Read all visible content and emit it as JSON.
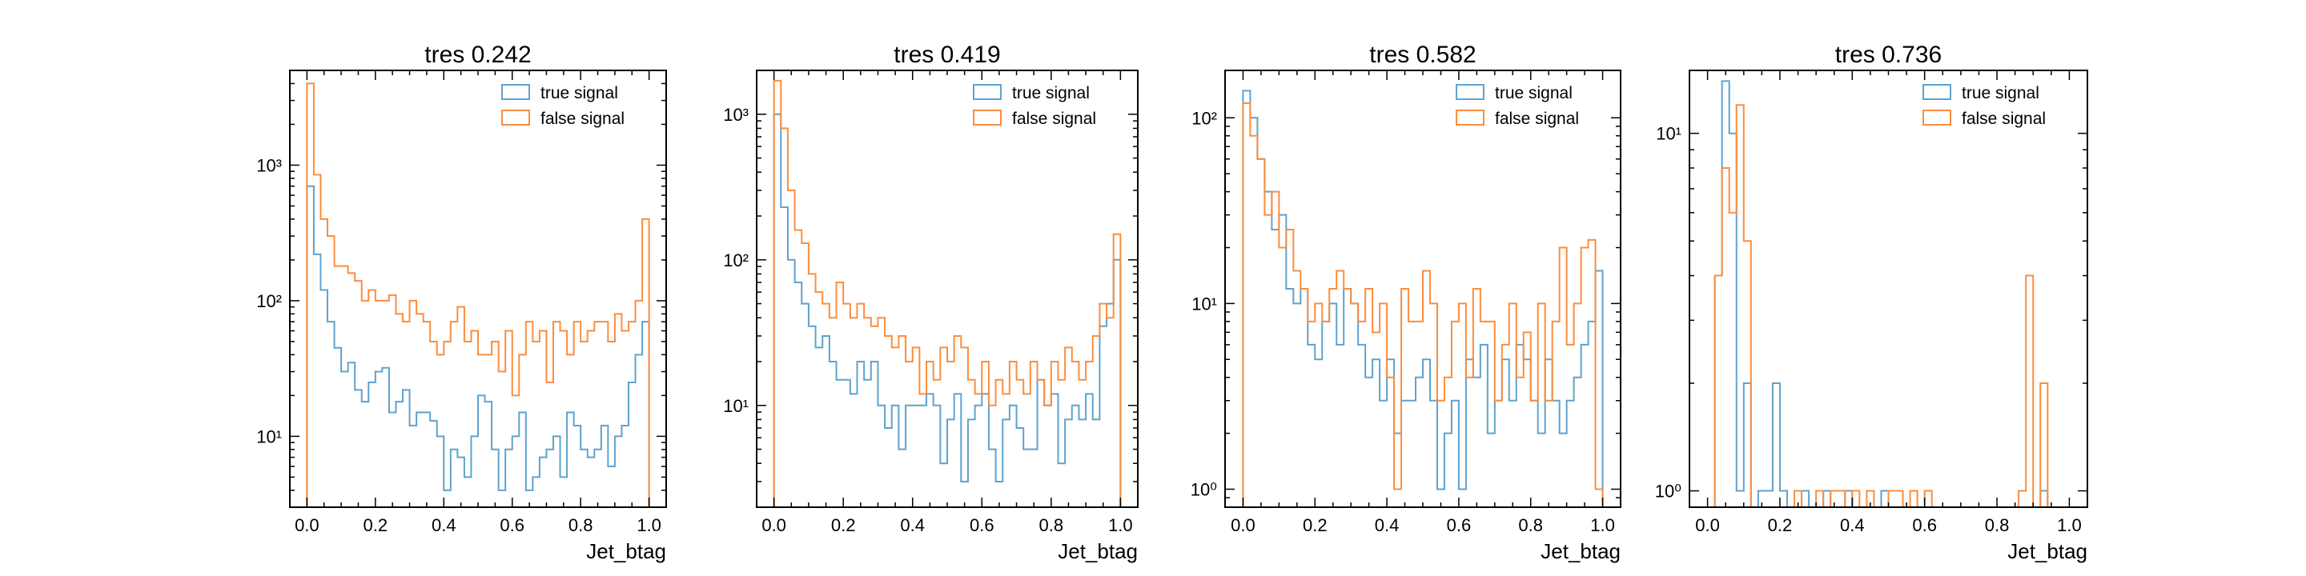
{
  "chart_data": [
    {
      "type": "histogram",
      "title": "tres 0.242",
      "xlabel": "Jet_btag",
      "ylabel": "",
      "yscale": "log",
      "xlim": [
        -0.05,
        1.05
      ],
      "ylim": [
        3,
        5000
      ],
      "bins": 50,
      "xticks": [
        "0.0",
        "0.2",
        "0.4",
        "0.6",
        "0.8",
        "1.0"
      ],
      "yticks": [
        {
          "value": 10,
          "label": "10¹"
        },
        {
          "value": 100,
          "label": "10²"
        },
        {
          "value": 1000,
          "label": "10³"
        }
      ],
      "legend": {
        "placement": "top-right",
        "entries": [
          "true signal",
          "false signal"
        ]
      },
      "series": [
        {
          "name": "true signal",
          "color": "#5fa2ce",
          "style": "step",
          "values": [
            700,
            220,
            120,
            70,
            45,
            30,
            35,
            22,
            18,
            25,
            30,
            32,
            15,
            18,
            22,
            12,
            15,
            15,
            13,
            10,
            4,
            8,
            7,
            5,
            10,
            20,
            18,
            8,
            4,
            8,
            10,
            15,
            4,
            5,
            7,
            8,
            10,
            5,
            15,
            12,
            8,
            7,
            8,
            12,
            6,
            10,
            12,
            25,
            40,
            70
          ]
        },
        {
          "name": "false signal",
          "color": "#fc8d3d",
          "style": "step",
          "values": [
            4000,
            850,
            400,
            300,
            180,
            180,
            160,
            140,
            100,
            120,
            100,
            100,
            110,
            80,
            70,
            100,
            80,
            70,
            50,
            40,
            50,
            70,
            90,
            50,
            60,
            40,
            40,
            50,
            30,
            60,
            20,
            40,
            70,
            50,
            60,
            25,
            70,
            60,
            40,
            70,
            50,
            60,
            70,
            70,
            50,
            80,
            60,
            70,
            100,
            400
          ]
        }
      ]
    },
    {
      "type": "histogram",
      "title": "tres 0.419",
      "xlabel": "Jet_btag",
      "ylabel": "",
      "yscale": "log",
      "xlim": [
        -0.05,
        1.05
      ],
      "ylim": [
        2,
        2000
      ],
      "bins": 50,
      "xticks": [
        "0.0",
        "0.2",
        "0.4",
        "0.6",
        "0.8",
        "1.0"
      ],
      "yticks": [
        {
          "value": 10,
          "label": "10¹"
        },
        {
          "value": 100,
          "label": "10²"
        },
        {
          "value": 1000,
          "label": "10³"
        }
      ],
      "legend": {
        "placement": "top-right",
        "entries": [
          "true signal",
          "false signal"
        ]
      },
      "series": [
        {
          "name": "true signal",
          "color": "#5fa2ce",
          "style": "step",
          "values": [
            1000,
            230,
            100,
            70,
            50,
            35,
            25,
            30,
            20,
            15,
            15,
            12,
            20,
            15,
            20,
            10,
            7,
            10,
            5,
            10,
            10,
            10,
            12,
            10,
            4,
            8,
            12,
            3,
            8,
            10,
            12,
            5,
            3,
            8,
            10,
            7,
            5,
            5,
            15,
            10,
            12,
            4,
            8,
            10,
            8,
            12,
            8,
            35,
            50,
            100
          ]
        },
        {
          "name": "false signal",
          "color": "#fc8d3d",
          "style": "step",
          "values": [
            1700,
            800,
            300,
            160,
            130,
            80,
            60,
            50,
            40,
            70,
            50,
            40,
            50,
            40,
            35,
            40,
            30,
            25,
            30,
            20,
            25,
            12,
            20,
            15,
            25,
            20,
            30,
            25,
            15,
            12,
            20,
            10,
            15,
            12,
            20,
            15,
            12,
            20,
            15,
            10,
            20,
            15,
            25,
            20,
            15,
            20,
            30,
            50,
            40,
            150
          ]
        }
      ]
    },
    {
      "type": "histogram",
      "title": "tres 0.582",
      "xlabel": "Jet_btag",
      "ylabel": "",
      "yscale": "log",
      "xlim": [
        -0.05,
        1.05
      ],
      "ylim": [
        0.8,
        180
      ],
      "bins": 50,
      "xticks": [
        "0.0",
        "0.2",
        "0.4",
        "0.6",
        "0.8",
        "1.0"
      ],
      "yticks": [
        {
          "value": 1,
          "label": "10⁰"
        },
        {
          "value": 10,
          "label": "10¹"
        },
        {
          "value": 100,
          "label": "10²"
        }
      ],
      "legend": {
        "placement": "top-right",
        "entries": [
          "true signal",
          "false signal"
        ]
      },
      "series": [
        {
          "name": "true signal",
          "color": "#5fa2ce",
          "style": "step",
          "values": [
            140,
            100,
            60,
            40,
            25,
            30,
            12,
            10,
            12,
            6,
            5,
            8,
            10,
            6,
            12,
            10,
            6,
            4,
            5,
            3,
            5,
            2,
            3,
            3,
            4,
            5,
            3,
            1,
            2,
            3,
            1,
            5,
            4,
            6,
            2,
            3,
            5,
            3,
            6,
            5,
            3,
            2,
            5,
            3,
            2,
            3,
            4,
            6,
            8,
            15
          ]
        },
        {
          "name": "false signal",
          "color": "#fc8d3d",
          "style": "step",
          "values": [
            120,
            80,
            60,
            30,
            40,
            20,
            25,
            15,
            12,
            8,
            10,
            8,
            12,
            15,
            12,
            10,
            8,
            12,
            7,
            10,
            4,
            1,
            12,
            8,
            8,
            15,
            10,
            3,
            4,
            8,
            10,
            4,
            12,
            8,
            8,
            3,
            6,
            10,
            4,
            7,
            3,
            10,
            3,
            8,
            20,
            6,
            10,
            20,
            22,
            1
          ]
        }
      ]
    },
    {
      "type": "histogram",
      "title": "tres 0.736",
      "xlabel": "Jet_btag",
      "ylabel": "",
      "yscale": "log",
      "xlim": [
        -0.05,
        1.05
      ],
      "ylim": [
        0.9,
        15
      ],
      "bins": 50,
      "xticks": [
        "0.0",
        "0.2",
        "0.4",
        "0.6",
        "0.8",
        "1.0"
      ],
      "yticks": [
        {
          "value": 1,
          "label": "10⁰"
        },
        {
          "value": 10,
          "label": "10¹"
        }
      ],
      "legend": {
        "placement": "top-right",
        "entries": [
          "true signal",
          "false signal"
        ]
      },
      "series": [
        {
          "name": "true signal",
          "color": "#5fa2ce",
          "style": "step",
          "values": [
            0,
            4,
            14,
            10,
            1,
            2,
            0,
            1,
            1,
            2,
            1,
            0,
            0,
            1,
            0,
            0,
            1,
            0,
            0,
            1,
            0,
            0,
            0,
            0,
            1,
            0,
            0,
            0,
            0,
            0,
            0,
            0,
            0,
            0,
            0,
            0,
            0,
            0,
            0,
            0,
            0,
            0,
            0,
            0,
            0,
            0,
            1,
            0,
            0,
            0
          ]
        },
        {
          "name": "false signal",
          "color": "#fc8d3d",
          "style": "step",
          "values": [
            0,
            4,
            8,
            6,
            12,
            5,
            0,
            0,
            0,
            0,
            0,
            0,
            1,
            0,
            0,
            1,
            0,
            1,
            1,
            0,
            1,
            0,
            1,
            0,
            0,
            1,
            1,
            0,
            1,
            0,
            1,
            0,
            0,
            0,
            0,
            0,
            0,
            0,
            0,
            0,
            0,
            0,
            0,
            1,
            4,
            0,
            2,
            0,
            0,
            0
          ]
        }
      ]
    }
  ]
}
